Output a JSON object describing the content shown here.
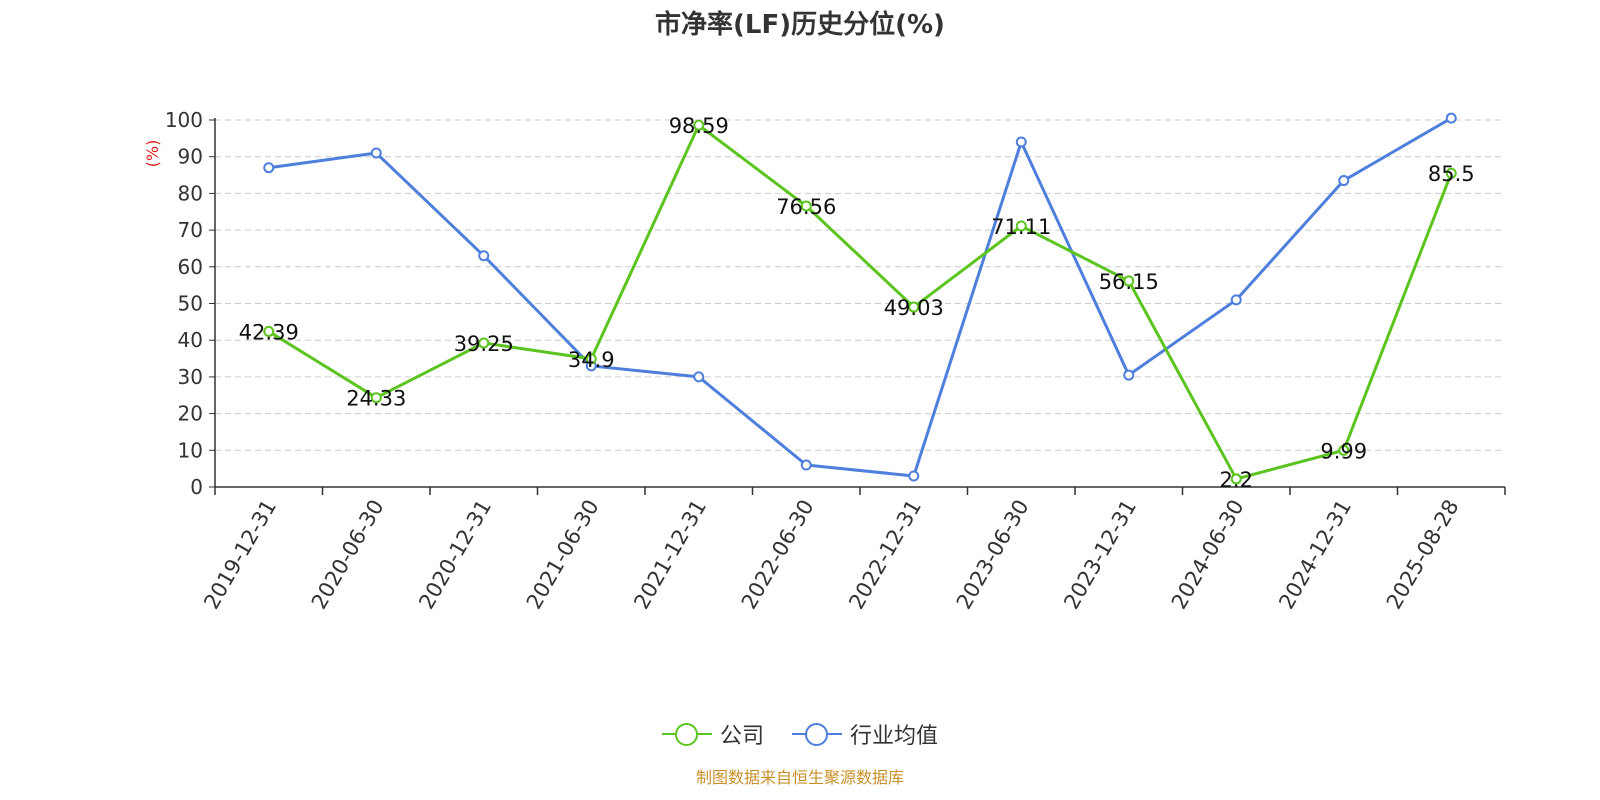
{
  "title": "市净率(LF)历史分位(%)",
  "source": "制图数据来自恒生聚源数据库",
  "colors": {
    "company": "#5cc41f",
    "industry": "#4e7fdc",
    "grid": "#cccccc",
    "axis": "#333333",
    "ylabel": "#e02020",
    "source": "#c8902a"
  },
  "legend": [
    {
      "name": "公司",
      "color": "#5cc41f"
    },
    {
      "name": "行业均值",
      "color": "#4e7fdc"
    }
  ],
  "chart_data": {
    "type": "line",
    "title": "市净率(LF)历史分位(%)",
    "xlabel": "",
    "ylabel": "(%)",
    "ylim": [
      0,
      100
    ],
    "yticks": [
      0,
      10,
      20,
      30,
      40,
      50,
      60,
      70,
      80,
      90,
      100
    ],
    "grid": true,
    "legend_position": "bottom",
    "categories": [
      "2019-12-31",
      "2020-06-30",
      "2020-12-31",
      "2021-06-30",
      "2021-12-31",
      "2022-06-30",
      "2022-12-31",
      "2023-06-30",
      "2023-12-31",
      "2024-06-30",
      "2024-12-31",
      "2025-08-28"
    ],
    "series": [
      {
        "name": "公司",
        "values": [
          42.39,
          24.33,
          39.25,
          34.9,
          98.59,
          76.56,
          49.03,
          71.11,
          56.15,
          2.2,
          9.99,
          85.5
        ],
        "labels": [
          "42.39",
          "24.33",
          "39.25",
          "34.9",
          "98.59",
          "76.56",
          "49.03",
          "71.11",
          "56.15",
          "2.2",
          "9.99",
          "85.5"
        ]
      },
      {
        "name": "行业均值",
        "values": [
          87,
          91,
          63,
          33,
          30,
          6,
          3,
          94,
          30.5,
          51,
          83.5,
          100.5
        ]
      }
    ]
  }
}
